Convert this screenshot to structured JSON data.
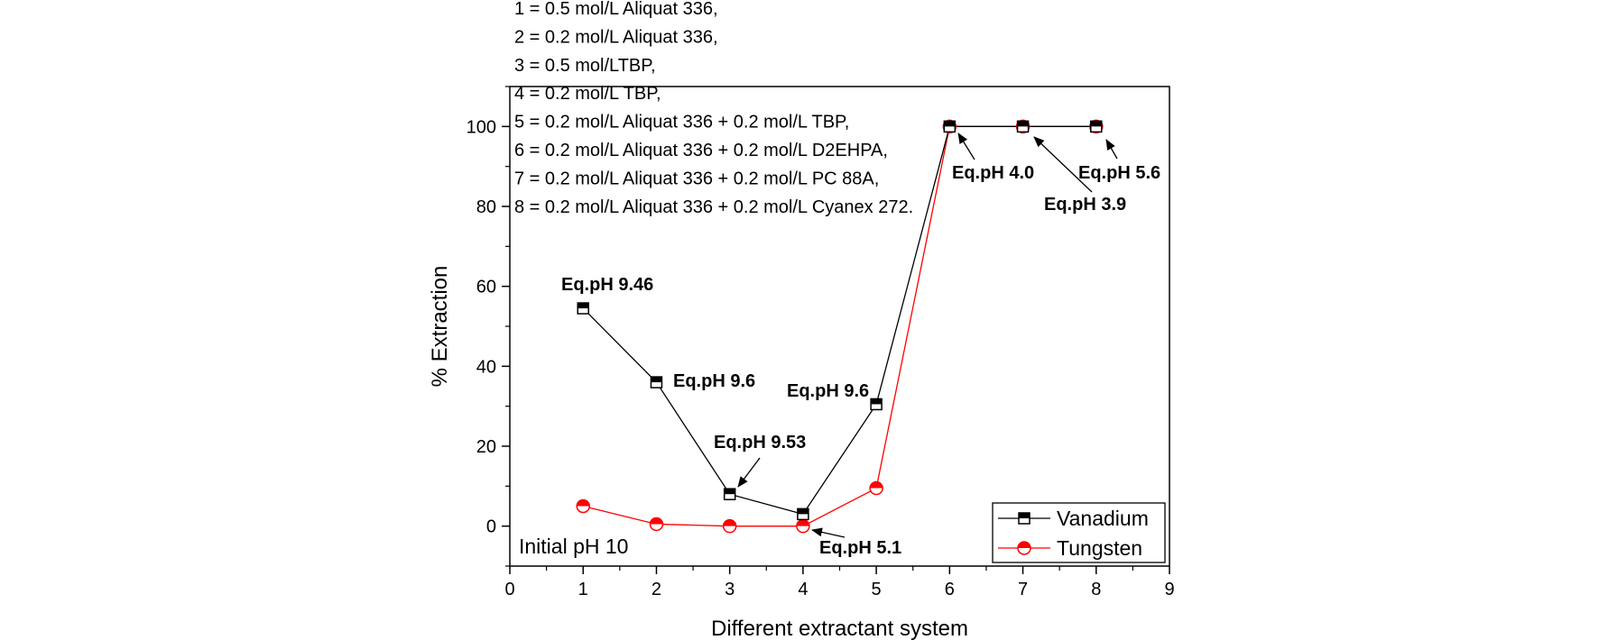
{
  "chart_data": {
    "type": "line",
    "xlabel": "Different extractant system",
    "ylabel": "% Extraction",
    "xlim": [
      0,
      9
    ],
    "ylim": [
      -10,
      110
    ],
    "xticks": [
      0,
      1,
      2,
      3,
      4,
      5,
      6,
      7,
      8,
      9
    ],
    "yticks": [
      0,
      20,
      40,
      60,
      80,
      100
    ],
    "legend_position": "bottom-right",
    "series": [
      {
        "name": "Vanadium",
        "color": "#000000",
        "marker": "half-filled-square",
        "x": [
          1,
          2,
          3,
          4,
          5,
          6,
          7,
          8
        ],
        "values": [
          54.5,
          36,
          8,
          3,
          30.5,
          100,
          100,
          100
        ]
      },
      {
        "name": "Tungsten",
        "color": "#ff0000",
        "marker": "half-filled-circle",
        "x": [
          1,
          2,
          3,
          4,
          5,
          6,
          7,
          8
        ],
        "values": [
          5,
          0.5,
          0,
          0,
          9.5,
          100,
          100,
          100
        ]
      }
    ],
    "legend_notes": [
      "1 = 0.5 mol/L Aliquat 336,",
      "2 = 0.2 mol/L Aliquat 336,",
      "3 = 0.5 mol/LTBP,",
      "4 = 0.2 mol/L TBP,",
      "5 = 0.2 mol/L Aliquat  336 + 0.2 mol/L TBP,",
      "6 = 0.2 mol/L Aliquat  336 + 0.2 mol/L D2EHPA,",
      "7 = 0.2 mol/L Aliquat  336 + 0.2 mol/L PC 88A,",
      "8 = 0.2 mol/L Aliquat 336 + 0.2 mol/L Cyanex 272."
    ],
    "annotations": [
      {
        "text": "Eq.pH 9.46",
        "point": [
          1,
          54.5
        ]
      },
      {
        "text": "Eq.pH 9.6",
        "point": [
          2,
          36
        ]
      },
      {
        "text": "Eq.pH 9.53",
        "point": [
          3,
          8
        ]
      },
      {
        "text": "Eq.pH 9.6",
        "point": [
          5,
          30.5
        ]
      },
      {
        "text": "Eq.pH 5.1",
        "point": [
          4,
          0
        ]
      },
      {
        "text": "Eq.pH 4.0",
        "point": [
          6,
          100
        ]
      },
      {
        "text": "Eq.pH 3.9",
        "point": [
          7,
          100
        ]
      },
      {
        "text": "Eq.pH 5.6",
        "point": [
          8,
          100
        ]
      }
    ],
    "inset_label": "Initial pH 10"
  }
}
